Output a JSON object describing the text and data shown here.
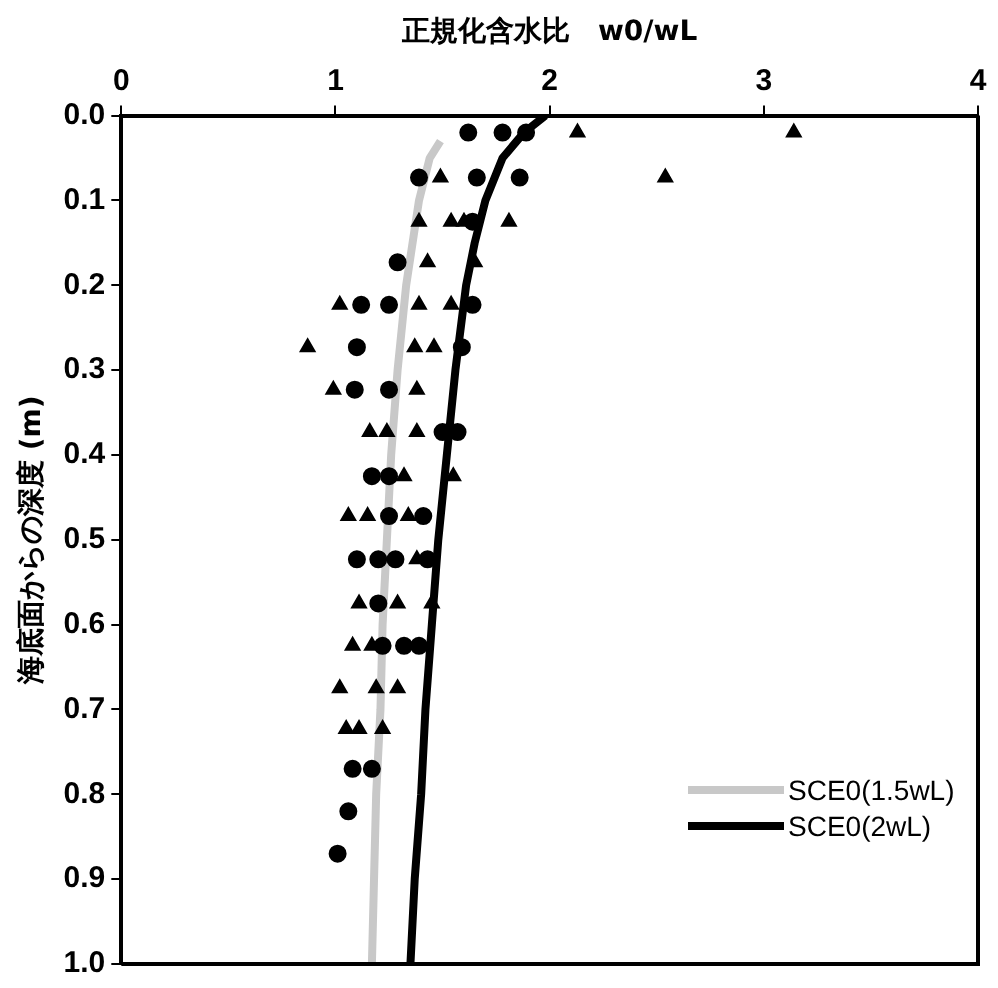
{
  "chart_data": {
    "type": "scatter",
    "xlabel": "正規化含水比　w0/wL",
    "ylabel": "海底面からの深度 (m)",
    "xlim": [
      0,
      4
    ],
    "xticks": [
      0,
      1,
      2,
      3,
      4
    ],
    "ylim": [
      1.0,
      0.0
    ],
    "yticks": [
      {
        "value": 0,
        "label": "0.0"
      },
      0.1,
      0.2,
      0.3,
      0.4,
      0.5,
      0.6,
      0.7,
      0.8,
      0.9,
      {
        "value": 1,
        "label": "1.0"
      }
    ],
    "grid": false,
    "legend": "bottom right",
    "series": [
      {
        "type": "scatter",
        "marker": "triangle",
        "color": "#000000",
        "x": [
          2.13,
          3.14,
          1.49,
          2.54,
          1.39,
          1.54,
          1.6,
          1.81,
          1.43,
          1.65,
          1.02,
          1.39,
          1.54,
          0.87,
          1.37,
          1.46,
          0.99,
          1.38,
          1.16,
          1.24,
          1.38,
          1.32,
          1.55,
          1.06,
          1.15,
          1.34,
          1.38,
          1.11,
          1.29,
          1.45,
          1.08,
          1.17,
          1.02,
          1.19,
          1.29,
          1.05,
          1.11,
          1.22
        ],
        "values": [
          0.02,
          0.02,
          0.073,
          0.073,
          0.125,
          0.125,
          0.125,
          0.125,
          0.173,
          0.173,
          0.223,
          0.223,
          0.223,
          0.273,
          0.273,
          0.273,
          0.323,
          0.323,
          0.373,
          0.373,
          0.373,
          0.425,
          0.425,
          0.472,
          0.472,
          0.472,
          0.523,
          0.575,
          0.575,
          0.575,
          0.625,
          0.625,
          0.675,
          0.675,
          0.675,
          0.723,
          0.723,
          0.723
        ]
      },
      {
        "type": "scatter",
        "marker": "circle",
        "color": "#000000",
        "x": [
          1.62,
          1.78,
          1.89,
          1.39,
          1.66,
          1.86,
          1.64,
          1.29,
          1.12,
          1.25,
          1.64,
          1.1,
          1.59,
          1.09,
          1.25,
          1.5,
          1.57,
          1.17,
          1.25,
          1.25,
          1.41,
          1.1,
          1.2,
          1.28,
          1.43,
          1.2,
          1.22,
          1.32,
          1.39,
          1.08,
          1.17,
          1.06,
          1.01
        ],
        "values": [
          0.02,
          0.02,
          0.02,
          0.073,
          0.073,
          0.073,
          0.125,
          0.173,
          0.223,
          0.223,
          0.223,
          0.273,
          0.273,
          0.323,
          0.323,
          0.373,
          0.373,
          0.425,
          0.425,
          0.472,
          0.472,
          0.523,
          0.523,
          0.523,
          0.523,
          0.575,
          0.625,
          0.625,
          0.625,
          0.77,
          0.77,
          0.82,
          0.87
        ]
      },
      {
        "type": "line",
        "name": "SCE0(1.5wL)",
        "color": "#c8c8c8",
        "marker": "none",
        "x": [
          1.49,
          1.44,
          1.39,
          1.33,
          1.29,
          1.26,
          1.24,
          1.22,
          1.21,
          1.19,
          1.18,
          1.17
        ],
        "values": [
          0.03,
          0.05,
          0.1,
          0.2,
          0.3,
          0.4,
          0.5,
          0.6,
          0.7,
          0.8,
          0.9,
          1.0
        ]
      },
      {
        "type": "line",
        "name": "SCE0(2wL)",
        "color": "#000000",
        "marker": "none",
        "x": [
          1.98,
          1.88,
          1.78,
          1.7,
          1.65,
          1.61,
          1.56,
          1.52,
          1.48,
          1.45,
          1.42,
          1.4,
          1.37,
          1.35
        ],
        "values": [
          0,
          0.02,
          0.05,
          0.1,
          0.15,
          0.2,
          0.3,
          0.4,
          0.5,
          0.6,
          0.7,
          0.8,
          0.9,
          1.0
        ]
      }
    ]
  }
}
